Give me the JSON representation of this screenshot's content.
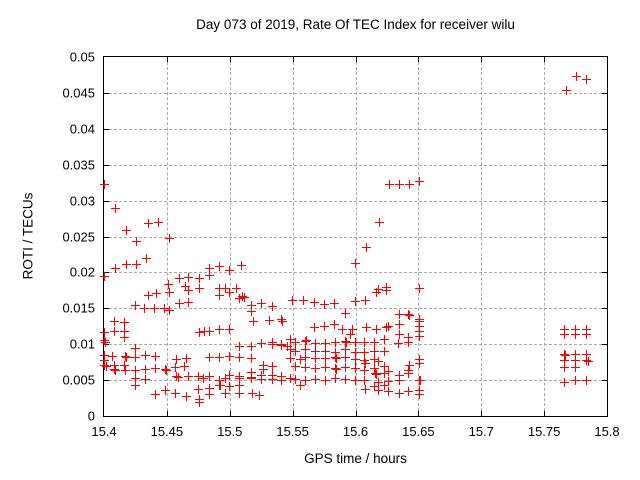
{
  "colors": {
    "marker": "#ff0000",
    "grid": "#a8a8a8",
    "axis": "#000000",
    "background": "#ffffff"
  },
  "chart_data": {
    "type": "scatter",
    "title": "Day 073 of 2019, Rate Of TEC Index for receiver wilu",
    "xlabel": "GPS time / hours",
    "ylabel": "ROTI / TECUs",
    "xlim": [
      15.4,
      15.8
    ],
    "ylim": [
      0,
      0.05
    ],
    "grid": "dashed",
    "legend": "none",
    "marker": "plus",
    "xticks": [
      {
        "v": 15.4,
        "label": "15.4"
      },
      {
        "v": 15.45,
        "label": "15.45"
      },
      {
        "v": 15.5,
        "label": "15.5"
      },
      {
        "v": 15.55,
        "label": "15.55"
      },
      {
        "v": 15.6,
        "label": "15.6"
      },
      {
        "v": 15.65,
        "label": "15.65"
      },
      {
        "v": 15.7,
        "label": "15.7"
      },
      {
        "v": 15.75,
        "label": "15.75"
      },
      {
        "v": 15.8,
        "label": "15.8"
      }
    ],
    "yticks": [
      {
        "v": 0,
        "label": "0"
      },
      {
        "v": 0.005,
        "label": "0.005"
      },
      {
        "v": 0.01,
        "label": "0.01"
      },
      {
        "v": 0.015,
        "label": "0.015"
      },
      {
        "v": 0.02,
        "label": "0.02"
      },
      {
        "v": 0.025,
        "label": "0.025"
      },
      {
        "v": 0.03,
        "label": "0.03"
      },
      {
        "v": 0.035,
        "label": "0.035"
      },
      {
        "v": 0.04,
        "label": "0.04"
      },
      {
        "v": 0.045,
        "label": "0.045"
      },
      {
        "v": 0.05,
        "label": "0.05"
      }
    ],
    "points": [
      [
        15.4,
        0.0323
      ],
      [
        15.409,
        0.0289
      ],
      [
        15.418,
        0.0258
      ],
      [
        15.426,
        0.0243
      ],
      [
        15.435,
        0.0268
      ],
      [
        15.443,
        0.027
      ],
      [
        15.452,
        0.0247
      ],
      [
        15.434,
        0.022
      ],
      [
        15.418,
        0.0211
      ],
      [
        15.426,
        0.0211
      ],
      [
        15.409,
        0.0205
      ],
      [
        15.4,
        0.0194
      ],
      [
        15.46,
        0.0192
      ],
      [
        15.467,
        0.0193
      ],
      [
        15.465,
        0.018
      ],
      [
        15.451,
        0.0183
      ],
      [
        15.435,
        0.0168
      ],
      [
        15.442,
        0.017
      ],
      [
        15.452,
        0.0172
      ],
      [
        15.467,
        0.0175
      ],
      [
        15.46,
        0.0157
      ],
      [
        15.467,
        0.0158
      ],
      [
        15.425,
        0.0154
      ],
      [
        15.432,
        0.015
      ],
      [
        15.44,
        0.015
      ],
      [
        15.448,
        0.015
      ],
      [
        15.452,
        0.0147
      ],
      [
        15.408,
        0.0132
      ],
      [
        15.416,
        0.013
      ],
      [
        15.408,
        0.0118
      ],
      [
        15.416,
        0.0117
      ],
      [
        15.4,
        0.0116
      ],
      [
        15.416,
        0.0109
      ],
      [
        15.4,
        0.0105
      ],
      [
        15.401,
        0.0103
      ],
      [
        15.425,
        0.0094
      ],
      [
        15.4,
        0.0084
      ],
      [
        15.407,
        0.0083
      ],
      [
        15.417,
        0.0083
      ],
      [
        15.418,
        0.0081
      ],
      [
        15.425,
        0.0081
      ],
      [
        15.433,
        0.0084
      ],
      [
        15.441,
        0.0083
      ],
      [
        15.4,
        0.0077
      ],
      [
        15.4,
        0.007
      ],
      [
        15.402,
        0.0069
      ],
      [
        15.408,
        0.007
      ],
      [
        15.416,
        0.007
      ],
      [
        15.408,
        0.0065
      ],
      [
        15.409,
        0.0063
      ],
      [
        15.417,
        0.0063
      ],
      [
        15.425,
        0.0064
      ],
      [
        15.433,
        0.0065
      ],
      [
        15.441,
        0.0066
      ],
      [
        15.449,
        0.0065
      ],
      [
        15.45,
        0.0064
      ],
      [
        15.457,
        0.0067
      ],
      [
        15.464,
        0.0069
      ],
      [
        15.458,
        0.0079
      ],
      [
        15.466,
        0.008
      ],
      [
        15.425,
        0.0052
      ],
      [
        15.433,
        0.0051
      ],
      [
        15.425,
        0.0043
      ],
      [
        15.458,
        0.0055
      ],
      [
        15.459,
        0.0054
      ],
      [
        15.467,
        0.0055
      ],
      [
        15.449,
        0.0035
      ],
      [
        15.441,
        0.003
      ],
      [
        15.457,
        0.0031
      ],
      [
        15.466,
        0.0027
      ],
      [
        15.476,
        0.0019
      ],
      [
        15.476,
        0.0192
      ],
      [
        15.484,
        0.0195
      ],
      [
        15.484,
        0.0205
      ],
      [
        15.492,
        0.0208
      ],
      [
        15.5,
        0.0203
      ],
      [
        15.509,
        0.0209
      ],
      [
        15.476,
        0.0178
      ],
      [
        15.492,
        0.0177
      ],
      [
        15.497,
        0.0177
      ],
      [
        15.505,
        0.0177
      ],
      [
        15.492,
        0.0168
      ],
      [
        15.51,
        0.0166
      ],
      [
        15.5,
        0.0172
      ],
      [
        15.508,
        0.0164
      ],
      [
        15.512,
        0.0165
      ],
      [
        15.517,
        0.0154
      ],
      [
        15.525,
        0.0156
      ],
      [
        15.534,
        0.0153
      ],
      [
        15.517,
        0.0146
      ],
      [
        15.519,
        0.0132
      ],
      [
        15.532,
        0.0133
      ],
      [
        15.541,
        0.0135
      ],
      [
        15.542,
        0.0131
      ],
      [
        15.476,
        0.0116
      ],
      [
        15.48,
        0.0117
      ],
      [
        15.484,
        0.0118
      ],
      [
        15.492,
        0.012
      ],
      [
        15.5,
        0.0121
      ],
      [
        15.508,
        0.0097
      ],
      [
        15.517,
        0.0097
      ],
      [
        15.525,
        0.0101
      ],
      [
        15.534,
        0.0102
      ],
      [
        15.534,
        0.0099
      ],
      [
        15.541,
        0.01
      ],
      [
        15.541,
        0.0098
      ],
      [
        15.546,
        0.0097
      ],
      [
        15.484,
        0.0081
      ],
      [
        15.492,
        0.0081
      ],
      [
        15.5,
        0.0083
      ],
      [
        15.508,
        0.0081
      ],
      [
        15.517,
        0.008
      ],
      [
        15.527,
        0.0071
      ],
      [
        15.527,
        0.0065
      ],
      [
        15.534,
        0.0069
      ],
      [
        15.475,
        0.0055
      ],
      [
        15.479,
        0.0052
      ],
      [
        15.484,
        0.0055
      ],
      [
        15.492,
        0.005
      ],
      [
        15.497,
        0.0052
      ],
      [
        15.5,
        0.0057
      ],
      [
        15.508,
        0.0055
      ],
      [
        15.508,
        0.0052
      ],
      [
        15.517,
        0.0052
      ],
      [
        15.517,
        0.0053
      ],
      [
        15.517,
        0.0061
      ],
      [
        15.525,
        0.0057
      ],
      [
        15.525,
        0.0051
      ],
      [
        15.534,
        0.0057
      ],
      [
        15.534,
        0.0051
      ],
      [
        15.541,
        0.0055
      ],
      [
        15.541,
        0.005
      ],
      [
        15.492,
        0.0043
      ],
      [
        15.493,
        0.0042
      ],
      [
        15.5,
        0.0041
      ],
      [
        15.508,
        0.0043
      ],
      [
        15.484,
        0.0038
      ],
      [
        15.475,
        0.0037
      ],
      [
        15.484,
        0.003
      ],
      [
        15.497,
        0.0031
      ],
      [
        15.508,
        0.0031
      ],
      [
        15.518,
        0.0031
      ],
      [
        15.524,
        0.0029
      ],
      [
        15.476,
        0.0023
      ],
      [
        15.55,
        0.0161
      ],
      [
        15.559,
        0.0161
      ],
      [
        15.567,
        0.0158
      ],
      [
        15.575,
        0.0155
      ],
      [
        15.583,
        0.0157
      ],
      [
        15.6,
        0.016
      ],
      [
        15.608,
        0.0161
      ],
      [
        15.592,
        0.0143
      ],
      [
        15.567,
        0.0123
      ],
      [
        15.575,
        0.0125
      ],
      [
        15.583,
        0.0127
      ],
      [
        15.59,
        0.012
      ],
      [
        15.598,
        0.0121
      ],
      [
        15.609,
        0.0123
      ],
      [
        15.617,
        0.0121
      ],
      [
        15.625,
        0.0123
      ],
      [
        15.548,
        0.0106
      ],
      [
        15.552,
        0.0103
      ],
      [
        15.56,
        0.0104
      ],
      [
        15.561,
        0.0105
      ],
      [
        15.568,
        0.0101
      ],
      [
        15.576,
        0.0101
      ],
      [
        15.584,
        0.0102
      ],
      [
        15.592,
        0.0104
      ],
      [
        15.593,
        0.0103
      ],
      [
        15.6,
        0.0102
      ],
      [
        15.607,
        0.0102
      ],
      [
        15.615,
        0.0103
      ],
      [
        15.623,
        0.0106
      ],
      [
        15.548,
        0.0092
      ],
      [
        15.552,
        0.009
      ],
      [
        15.56,
        0.0092
      ],
      [
        15.568,
        0.009
      ],
      [
        15.576,
        0.009
      ],
      [
        15.584,
        0.0089
      ],
      [
        15.592,
        0.0092
      ],
      [
        15.6,
        0.0089
      ],
      [
        15.607,
        0.0088
      ],
      [
        15.615,
        0.009
      ],
      [
        15.623,
        0.009
      ],
      [
        15.548,
        0.008
      ],
      [
        15.556,
        0.0079
      ],
      [
        15.56,
        0.0081
      ],
      [
        15.568,
        0.008
      ],
      [
        15.576,
        0.008
      ],
      [
        15.584,
        0.0081
      ],
      [
        15.585,
        0.008
      ],
      [
        15.592,
        0.0081
      ],
      [
        15.6,
        0.0079
      ],
      [
        15.607,
        0.0077
      ],
      [
        15.615,
        0.0079
      ],
      [
        15.552,
        0.0069
      ],
      [
        15.56,
        0.0067
      ],
      [
        15.568,
        0.0066
      ],
      [
        15.576,
        0.0067
      ],
      [
        15.584,
        0.0066
      ],
      [
        15.585,
        0.0065
      ],
      [
        15.592,
        0.0067
      ],
      [
        15.6,
        0.0066
      ],
      [
        15.607,
        0.0064
      ],
      [
        15.615,
        0.0066
      ],
      [
        15.623,
        0.0069
      ],
      [
        15.548,
        0.0052
      ],
      [
        15.552,
        0.0051
      ],
      [
        15.56,
        0.005
      ],
      [
        15.568,
        0.0051
      ],
      [
        15.576,
        0.005
      ],
      [
        15.584,
        0.0052
      ],
      [
        15.592,
        0.0051
      ],
      [
        15.6,
        0.005
      ],
      [
        15.607,
        0.0049
      ],
      [
        15.615,
        0.0041
      ],
      [
        15.623,
        0.0043
      ],
      [
        15.556,
        0.0043
      ],
      [
        15.6,
        0.0213
      ],
      [
        15.609,
        0.0234
      ],
      [
        15.619,
        0.0269
      ],
      [
        15.627,
        0.0323
      ],
      [
        15.635,
        0.0323
      ],
      [
        15.643,
        0.0323
      ],
      [
        15.651,
        0.0326
      ],
      [
        15.617,
        0.0172
      ],
      [
        15.625,
        0.0175
      ],
      [
        15.618,
        0.0176
      ],
      [
        15.625,
        0.0179
      ],
      [
        15.651,
        0.0177
      ],
      [
        15.635,
        0.0142
      ],
      [
        15.642,
        0.0141
      ],
      [
        15.643,
        0.014
      ],
      [
        15.651,
        0.0134
      ],
      [
        15.635,
        0.0128
      ],
      [
        15.626,
        0.0125
      ],
      [
        15.651,
        0.0132
      ],
      [
        15.651,
        0.0124
      ],
      [
        15.651,
        0.0118
      ],
      [
        15.651,
        0.0111
      ],
      [
        15.596,
        0.0114
      ],
      [
        15.635,
        0.0113
      ],
      [
        15.642,
        0.011
      ],
      [
        15.634,
        0.0101
      ],
      [
        15.642,
        0.0103
      ],
      [
        15.608,
        0.0073
      ],
      [
        15.618,
        0.0076
      ],
      [
        15.643,
        0.0071
      ],
      [
        15.651,
        0.0079
      ],
      [
        15.651,
        0.0073
      ],
      [
        15.616,
        0.0059
      ],
      [
        15.617,
        0.0058
      ],
      [
        15.623,
        0.0059
      ],
      [
        15.626,
        0.0062
      ],
      [
        15.635,
        0.0057
      ],
      [
        15.642,
        0.0064
      ],
      [
        15.642,
        0.0059
      ],
      [
        15.618,
        0.0047
      ],
      [
        15.626,
        0.0048
      ],
      [
        15.635,
        0.005
      ],
      [
        15.651,
        0.005
      ],
      [
        15.652,
        0.0049
      ],
      [
        15.608,
        0.0037
      ],
      [
        15.618,
        0.0036
      ],
      [
        15.626,
        0.0034
      ],
      [
        15.635,
        0.0031
      ],
      [
        15.642,
        0.0034
      ],
      [
        15.651,
        0.0036
      ],
      [
        15.651,
        0.003
      ],
      [
        15.768,
        0.0454
      ],
      [
        15.776,
        0.0473
      ],
      [
        15.784,
        0.0468
      ],
      [
        15.766,
        0.012
      ],
      [
        15.775,
        0.012
      ],
      [
        15.784,
        0.012
      ],
      [
        15.766,
        0.0113
      ],
      [
        15.775,
        0.0113
      ],
      [
        15.784,
        0.0113
      ],
      [
        15.766,
        0.0085
      ],
      [
        15.767,
        0.0084
      ],
      [
        15.775,
        0.0085
      ],
      [
        15.784,
        0.0086
      ],
      [
        15.766,
        0.0077
      ],
      [
        15.775,
        0.0077
      ],
      [
        15.784,
        0.0077
      ],
      [
        15.785,
        0.0076
      ],
      [
        15.766,
        0.0068
      ],
      [
        15.775,
        0.0068
      ],
      [
        15.766,
        0.0047
      ],
      [
        15.775,
        0.005
      ],
      [
        15.784,
        0.0049
      ]
    ]
  }
}
